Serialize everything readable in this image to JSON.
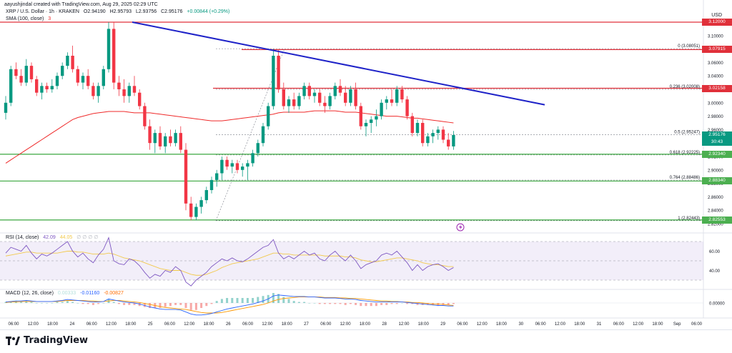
{
  "header": {
    "text": "aayushjindal created with TradingView.com, Aug 29, 2025 02:29 UTC"
  },
  "legend": {
    "symbol": "XRP / U.S. Dollar · 1h · KRAKEN",
    "open": "O2.94190",
    "high": "H2.95793",
    "low": "L2.93756",
    "close": "C2.95176",
    "change": "+0.00844 (+0.29%)",
    "sma": "SMA (100, close)",
    "sma_value": "3"
  },
  "rsi_legend": {
    "label": "RSI (14, close)",
    "v1": "42.09",
    "v2": "44.05",
    "rest": "∅ ∅ ∅ ∅"
  },
  "macd_legend": {
    "label": "MACD (12, 26, close)",
    "v1": "0.00333",
    "v2": "-0.01160",
    "v3": "-0.00827"
  },
  "currency": "USD",
  "brand": "TradingView",
  "colors": {
    "up": "#089981",
    "down": "#f23645",
    "trend": "#1e22c8",
    "sma": "#ef2a2a",
    "fib": "#e0303a",
    "support": "#4caf50",
    "rsi": "#7e57c2",
    "macd": "#2962ff",
    "signal": "#ff9800"
  },
  "chart_data": {
    "type": "candlestick",
    "symbol": "XRP / U.S. Dollar",
    "timeframe": "1h",
    "y_ticks": [
      3.12,
      3.1,
      3.08,
      3.06,
      3.04,
      3.02,
      3.0,
      2.98,
      2.96,
      2.94,
      2.92,
      2.9,
      2.88,
      2.86,
      2.84,
      2.82
    ],
    "y_tick_labels": [
      "3.12000",
      "3.10000",
      "3.08000",
      "3.06000",
      "3.04000",
      "3.02000",
      "3.00000",
      "2.98000",
      "2.96000",
      "2.94000",
      "2.92000",
      "2.90000",
      "2.88000",
      "2.86000",
      "2.84000",
      "2.82000"
    ],
    "x_ticks": [
      "06:00",
      "12:00",
      "18:00",
      "24",
      "06:00",
      "12:00",
      "18:00",
      "25",
      "06:00",
      "12:00",
      "18:00",
      "26",
      "06:00",
      "12:00",
      "18:00",
      "27",
      "06:00",
      "12:00",
      "18:00",
      "28",
      "12:00",
      "18:00",
      "29",
      "06:00",
      "12:00",
      "18:00",
      "30",
      "06:00",
      "12:00",
      "18:00",
      "31",
      "06:00",
      "12:00",
      "18:00",
      "Sep",
      "06:00"
    ],
    "fib_levels": [
      {
        "label": "0 (3.08051)",
        "value": 3.08051
      },
      {
        "label": "0.236 (3.02008)",
        "value": 3.02008
      },
      {
        "label": "0.5 (2.95247)",
        "value": 2.95247
      },
      {
        "label": "0.618 (2.92225)",
        "value": 2.92225
      },
      {
        "label": "0.764 (2.88486)",
        "value": 2.88486
      },
      {
        "label": "1 (2.82443)",
        "value": 2.82443
      }
    ],
    "price_tags": [
      {
        "text": "3.12000",
        "value": 3.12,
        "color": "#e0303a"
      },
      {
        "text": "3.07915",
        "value": 3.07915,
        "color": "#e0303a"
      },
      {
        "text": "3.02158",
        "value": 3.02158,
        "color": "#e0303a"
      },
      {
        "text": "2.95176",
        "value": 2.95176,
        "color": "#089981",
        "sub": "30:43"
      },
      {
        "text": "2.92340",
        "value": 2.9234,
        "color": "#4caf50"
      },
      {
        "text": "2.88340",
        "value": 2.8834,
        "color": "#4caf50"
      },
      {
        "text": "2.82553",
        "value": 2.82553,
        "color": "#4caf50"
      }
    ],
    "trend_line": {
      "start_price": 3.12,
      "end_price": 2.997
    },
    "horizontal_lines": [
      3.12,
      3.07915,
      3.02158,
      2.9234,
      2.8834,
      2.82553
    ],
    "rsi_levels": [
      70,
      50,
      30
    ],
    "rsi_tick_labels": [
      "60.00",
      "40.00"
    ],
    "macd_tick_label": "0.00000",
    "candles": [
      [
        2.985,
        3.01,
        2.975,
        3.0
      ],
      [
        3.0,
        3.055,
        2.995,
        3.05
      ],
      [
        3.05,
        3.06,
        3.035,
        3.04
      ],
      [
        3.04,
        3.05,
        3.025,
        3.03
      ],
      [
        3.03,
        3.065,
        3.025,
        3.055
      ],
      [
        3.055,
        3.06,
        3.03,
        3.035
      ],
      [
        3.035,
        3.04,
        3.01,
        3.015
      ],
      [
        3.015,
        3.03,
        3.005,
        3.025
      ],
      [
        3.025,
        3.03,
        3.015,
        3.02
      ],
      [
        3.02,
        3.035,
        3.015,
        3.025
      ],
      [
        3.025,
        3.045,
        3.02,
        3.04
      ],
      [
        3.04,
        3.06,
        3.035,
        3.055
      ],
      [
        3.055,
        3.075,
        3.05,
        3.07
      ],
      [
        3.07,
        3.085,
        3.045,
        3.05
      ],
      [
        3.05,
        3.055,
        3.025,
        3.03
      ],
      [
        3.03,
        3.045,
        3.02,
        3.04
      ],
      [
        3.04,
        3.05,
        3.02,
        3.025
      ],
      [
        3.025,
        3.03,
        3.005,
        3.01
      ],
      [
        3.01,
        3.03,
        3.0,
        3.025
      ],
      [
        3.025,
        3.055,
        3.02,
        3.05
      ],
      [
        3.05,
        3.12,
        3.045,
        3.11
      ],
      [
        3.11,
        3.12,
        3.02,
        3.03
      ],
      [
        3.03,
        3.04,
        3.01,
        3.02
      ],
      [
        3.02,
        3.035,
        3.0,
        3.01
      ],
      [
        3.01,
        3.03,
        3.0,
        3.025
      ],
      [
        3.025,
        3.04,
        3.01,
        3.015
      ],
      [
        3.015,
        3.02,
        2.99,
        2.995
      ],
      [
        2.995,
        3.0,
        2.96,
        2.965
      ],
      [
        2.965,
        2.975,
        2.93,
        2.94
      ],
      [
        2.94,
        2.96,
        2.925,
        2.955
      ],
      [
        2.955,
        2.965,
        2.93,
        2.935
      ],
      [
        2.935,
        2.955,
        2.925,
        2.95
      ],
      [
        2.95,
        2.96,
        2.935,
        2.94
      ],
      [
        2.94,
        2.96,
        2.935,
        2.955
      ],
      [
        2.955,
        2.965,
        2.925,
        2.93
      ],
      [
        2.93,
        2.94,
        2.84,
        2.85
      ],
      [
        2.85,
        2.86,
        2.825,
        2.83
      ],
      [
        2.83,
        2.85,
        2.825,
        2.845
      ],
      [
        2.845,
        2.86,
        2.835,
        2.855
      ],
      [
        2.855,
        2.875,
        2.85,
        2.87
      ],
      [
        2.87,
        2.89,
        2.865,
        2.885
      ],
      [
        2.885,
        2.9,
        2.875,
        2.895
      ],
      [
        2.895,
        2.92,
        2.885,
        2.915
      ],
      [
        2.915,
        2.92,
        2.9,
        2.905
      ],
      [
        2.905,
        2.915,
        2.895,
        2.91
      ],
      [
        2.91,
        2.915,
        2.895,
        2.9
      ],
      [
        2.9,
        2.91,
        2.89,
        2.905
      ],
      [
        2.905,
        2.915,
        2.885,
        2.91
      ],
      [
        2.91,
        2.93,
        2.905,
        2.925
      ],
      [
        2.925,
        2.945,
        2.92,
        2.94
      ],
      [
        2.94,
        2.97,
        2.935,
        2.965
      ],
      [
        2.965,
        3.0,
        2.96,
        2.995
      ],
      [
        2.995,
        3.08,
        2.99,
        3.07
      ],
      [
        3.07,
        3.08,
        3.015,
        3.02
      ],
      [
        3.02,
        3.03,
        2.99,
        2.995
      ],
      [
        2.995,
        3.01,
        2.985,
        3.005
      ],
      [
        3.005,
        3.015,
        2.99,
        2.995
      ],
      [
        2.995,
        3.015,
        2.99,
        3.01
      ],
      [
        3.01,
        3.03,
        3.005,
        3.025
      ],
      [
        3.025,
        3.03,
        3.005,
        3.01
      ],
      [
        3.01,
        3.02,
        3.0,
        3.015
      ],
      [
        3.015,
        3.02,
        2.995,
        3.0
      ],
      [
        3.0,
        3.01,
        2.985,
        2.995
      ],
      [
        2.995,
        3.015,
        2.99,
        3.01
      ],
      [
        3.01,
        3.03,
        3.005,
        3.025
      ],
      [
        3.025,
        3.035,
        3.01,
        3.015
      ],
      [
        3.015,
        3.025,
        2.995,
        3.0
      ],
      [
        3.0,
        3.025,
        2.995,
        3.02
      ],
      [
        3.02,
        3.03,
        2.99,
        2.995
      ],
      [
        2.995,
        3.0,
        2.96,
        2.965
      ],
      [
        2.965,
        2.975,
        2.95,
        2.97
      ],
      [
        2.97,
        2.98,
        2.955,
        2.975
      ],
      [
        2.975,
        2.99,
        2.965,
        2.98
      ],
      [
        2.98,
        3.005,
        2.975,
        3.0
      ],
      [
        3.0,
        3.01,
        2.99,
        3.005
      ],
      [
        3.005,
        3.02,
        2.995,
        3.0
      ],
      [
        3.0,
        3.025,
        2.995,
        3.02
      ],
      [
        3.02,
        3.025,
        3.0,
        3.005
      ],
      [
        3.005,
        3.01,
        2.975,
        2.98
      ],
      [
        2.98,
        2.985,
        2.95,
        2.955
      ],
      [
        2.955,
        2.975,
        2.95,
        2.97
      ],
      [
        2.97,
        2.975,
        2.935,
        2.94
      ],
      [
        2.94,
        2.955,
        2.935,
        2.95
      ],
      [
        2.95,
        2.96,
        2.94,
        2.955
      ],
      [
        2.955,
        2.965,
        2.945,
        2.96
      ],
      [
        2.96,
        2.965,
        2.94,
        2.945
      ],
      [
        2.945,
        2.955,
        2.93,
        2.935
      ],
      [
        2.935,
        2.958,
        2.93,
        2.952
      ]
    ],
    "sma_values": [
      2.91,
      2.915,
      2.92,
      2.925,
      2.93,
      2.935,
      2.94,
      2.945,
      2.95,
      2.955,
      2.96,
      2.965,
      2.97,
      2.975,
      2.978,
      2.98,
      2.982,
      2.984,
      2.985,
      2.986,
      2.987,
      2.987,
      2.987,
      2.987,
      2.986,
      2.985,
      2.985,
      2.985,
      2.985,
      2.984,
      2.983,
      2.982,
      2.981,
      2.98,
      2.979,
      2.978,
      2.977,
      2.976,
      2.975,
      2.974,
      2.973,
      2.973,
      2.973,
      2.974,
      2.975,
      2.976,
      2.977,
      2.978,
      2.979,
      2.98,
      2.981,
      2.982,
      2.983,
      2.985,
      2.986,
      2.986,
      2.986,
      2.986,
      2.986,
      2.987,
      2.988,
      2.988,
      2.988,
      2.988,
      2.988,
      2.987,
      2.986,
      2.986,
      2.986,
      2.985,
      2.984,
      2.983,
      2.982,
      2.981,
      2.98,
      2.98,
      2.98,
      2.979,
      2.978,
      2.977,
      2.977,
      2.976,
      2.975,
      2.974,
      2.973,
      2.972,
      2.971,
      2.97
    ],
    "rsi_values": [
      58,
      64,
      62,
      60,
      66,
      58,
      52,
      57,
      55,
      58,
      62,
      66,
      70,
      60,
      54,
      58,
      52,
      48,
      56,
      62,
      74,
      50,
      47,
      46,
      52,
      50,
      45,
      38,
      32,
      36,
      34,
      40,
      38,
      44,
      40,
      28,
      24,
      30,
      34,
      38,
      44,
      48,
      52,
      50,
      53,
      50,
      49,
      52,
      56,
      60,
      64,
      66,
      72,
      58,
      52,
      55,
      52,
      56,
      60,
      56,
      58,
      52,
      50,
      56,
      60,
      54,
      50,
      56,
      50,
      42,
      46,
      48,
      50,
      56,
      58,
      56,
      60,
      54,
      48,
      40,
      46,
      40,
      44,
      46,
      47,
      44,
      40,
      43
    ],
    "rsi_ma_values": [
      55,
      56,
      57,
      58,
      59,
      59,
      58,
      58,
      58,
      58,
      58,
      59,
      60,
      60,
      59,
      59,
      58,
      57,
      57,
      57,
      58,
      57,
      55,
      53,
      52,
      51,
      50,
      48,
      46,
      44,
      42,
      41,
      40,
      40,
      40,
      38,
      36,
      35,
      35,
      36,
      38,
      40,
      43,
      45,
      47,
      48,
      49,
      50,
      51,
      52,
      54,
      56,
      58,
      58,
      57,
      57,
      56,
      56,
      56,
      56,
      56,
      56,
      55,
      55,
      55,
      55,
      54,
      54,
      53,
      51,
      50,
      49,
      49,
      50,
      51,
      52,
      53,
      53,
      52,
      51,
      50,
      48,
      47,
      46,
      46,
      45,
      44,
      44
    ],
    "macd_values": [
      0.002,
      0.003,
      0.004,
      0.004,
      0.005,
      0.004,
      0.003,
      0.003,
      0.003,
      0.003,
      0.004,
      0.005,
      0.007,
      0.006,
      0.005,
      0.004,
      0.003,
      0.002,
      0.002,
      0.003,
      0.008,
      0.006,
      0.004,
      0.002,
      0.001,
      0.0,
      -0.002,
      -0.005,
      -0.008,
      -0.01,
      -0.012,
      -0.013,
      -0.013,
      -0.013,
      -0.014,
      -0.018,
      -0.022,
      -0.024,
      -0.024,
      -0.023,
      -0.021,
      -0.018,
      -0.015,
      -0.012,
      -0.01,
      -0.008,
      -0.006,
      -0.004,
      -0.002,
      0.001,
      0.004,
      0.008,
      0.014,
      0.016,
      0.015,
      0.014,
      0.013,
      0.013,
      0.013,
      0.012,
      0.012,
      0.011,
      0.01,
      0.01,
      0.01,
      0.009,
      0.008,
      0.008,
      0.007,
      0.005,
      0.004,
      0.003,
      0.002,
      0.002,
      0.002,
      0.002,
      0.002,
      0.002,
      0.001,
      0.0,
      -0.001,
      -0.002,
      -0.003,
      -0.004,
      -0.005,
      -0.005,
      -0.006,
      -0.006
    ],
    "signal_values": [
      0.001,
      0.002,
      0.002,
      0.003,
      0.003,
      0.003,
      0.003,
      0.003,
      0.003,
      0.003,
      0.003,
      0.004,
      0.005,
      0.005,
      0.005,
      0.005,
      0.004,
      0.004,
      0.003,
      0.003,
      0.004,
      0.005,
      0.005,
      0.004,
      0.003,
      0.002,
      0.001,
      -0.001,
      -0.003,
      -0.005,
      -0.007,
      -0.009,
      -0.01,
      -0.011,
      -0.012,
      -0.013,
      -0.015,
      -0.017,
      -0.019,
      -0.02,
      -0.02,
      -0.02,
      -0.019,
      -0.017,
      -0.015,
      -0.013,
      -0.011,
      -0.009,
      -0.007,
      -0.005,
      -0.003,
      0.0,
      0.004,
      0.007,
      0.009,
      0.01,
      0.011,
      0.012,
      0.012,
      0.012,
      0.012,
      0.012,
      0.011,
      0.011,
      0.011,
      0.01,
      0.01,
      0.009,
      0.009,
      0.008,
      0.007,
      0.006,
      0.005,
      0.004,
      0.004,
      0.003,
      0.003,
      0.002,
      0.002,
      0.001,
      0.001,
      0.0,
      -0.001,
      -0.002,
      -0.002,
      -0.003,
      -0.004,
      -0.005
    ]
  }
}
